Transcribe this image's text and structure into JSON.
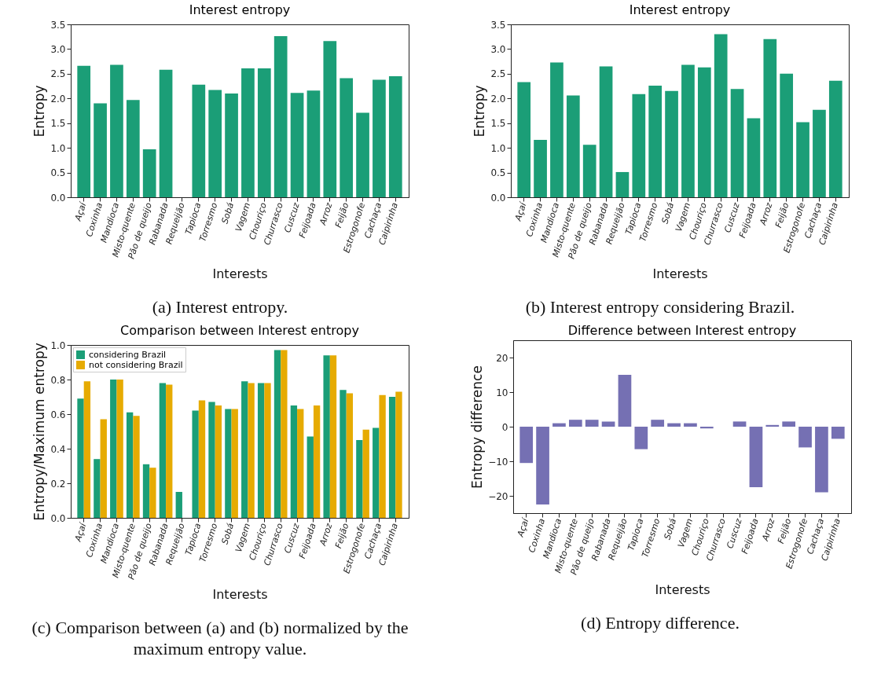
{
  "chart_data": [
    {
      "type": "bar",
      "title": "Interest entropy",
      "xlabel": "Interests",
      "ylabel": "Entropy",
      "categories": [
        "Açaí",
        "Coxinha",
        "Mandioca",
        "Misto-quente",
        "Pão de queijo",
        "Rabanada",
        "Requeijão",
        "Tapioca",
        "Torresmo",
        "Sobá",
        "Vagem",
        "Chouriço",
        "Churrasco",
        "Cuscuz",
        "Feijoada",
        "Arroz",
        "Feijão",
        "Estrogonofe",
        "Cachaça",
        "Caipirinha"
      ],
      "values": [
        2.66,
        1.9,
        2.68,
        1.97,
        0.97,
        2.58,
        0,
        2.28,
        2.17,
        2.1,
        2.61,
        2.61,
        3.26,
        2.11,
        2.16,
        3.16,
        2.41,
        1.71,
        2.38,
        2.45
      ],
      "color": "#1b9e77",
      "ylim": [
        0,
        3.5
      ],
      "yticks": [
        {
          "value": 0,
          "label": "0.0"
        },
        0.5,
        {
          "value": 1,
          "label": "1.0"
        },
        1.5,
        {
          "value": 2,
          "label": "2.0"
        },
        2.5,
        {
          "value": 3,
          "label": "3.0"
        },
        3.5
      ],
      "annotations": [
        "(a) Interest entropy."
      ]
    },
    {
      "type": "bar",
      "title": "Interest entropy",
      "xlabel": "Interests",
      "ylabel": "Entropy",
      "categories": [
        "Açaí",
        "Coxinha",
        "Mandioca",
        "Misto-quente",
        "Pão de queijo",
        "Rabanada",
        "Requeijão",
        "Tapioca",
        "Torresmo",
        "Sobá",
        "Vagem",
        "Chouriço",
        "Churrasco",
        "Cuscuz",
        "Feijoada",
        "Arroz",
        "Feijão",
        "Estrogonofe",
        "Cachaça",
        "Caipirinha"
      ],
      "values": [
        2.33,
        1.16,
        2.73,
        2.06,
        1.06,
        2.65,
        0.51,
        2.09,
        2.26,
        2.15,
        2.68,
        2.63,
        3.3,
        2.19,
        1.6,
        3.2,
        2.5,
        1.52,
        1.77,
        2.36
      ],
      "color": "#1b9e77",
      "ylim": [
        0,
        3.5
      ],
      "yticks": [
        {
          "value": 0,
          "label": "0.0"
        },
        0.5,
        {
          "value": 1,
          "label": "1.0"
        },
        1.5,
        {
          "value": 2,
          "label": "2.0"
        },
        2.5,
        {
          "value": 3,
          "label": "3.0"
        },
        3.5
      ],
      "annotations": [
        "(b) Interest entropy considering Brazil."
      ]
    },
    {
      "type": "bar",
      "title": "Comparison between Interest entropy",
      "xlabel": "Interests",
      "ylabel": "Entropy/Maximum entropy",
      "categories": [
        "Açaí",
        "Coxinha",
        "Mandioca",
        "Misto-quente",
        "Pão de queijo",
        "Rabanada",
        "Requeijão",
        "Tapioca",
        "Torresmo",
        "Sobá",
        "Vagem",
        "Chouriço",
        "Churrasco",
        "Cuscuz",
        "Feijoada",
        "Arroz",
        "Feijão",
        "Estrogonofe",
        "Cachaça",
        "Caipirinha"
      ],
      "series": [
        {
          "name": "considering Brazil",
          "color": "#1b9e77",
          "values": [
            0.69,
            0.34,
            0.8,
            0.61,
            0.31,
            0.78,
            0.15,
            0.62,
            0.67,
            0.63,
            0.79,
            0.78,
            0.97,
            0.65,
            0.47,
            0.94,
            0.74,
            0.45,
            0.52,
            0.7
          ]
        },
        {
          "name": "not considering Brazil",
          "color": "#e6ab02",
          "values": [
            0.79,
            0.57,
            0.8,
            0.59,
            0.29,
            0.77,
            0,
            0.68,
            0.65,
            0.63,
            0.78,
            0.78,
            0.97,
            0.63,
            0.65,
            0.94,
            0.72,
            0.51,
            0.71,
            0.73
          ]
        }
      ],
      "ylim": [
        0,
        1
      ],
      "yticks": [
        {
          "value": 0,
          "label": "0.0"
        },
        0.2,
        0.4,
        0.6,
        0.8,
        {
          "value": 1,
          "label": "1.0"
        }
      ],
      "legend": "top left",
      "annotations": [
        "(c) Comparison between (a) and (b) normalized by the maximum entropy value."
      ]
    },
    {
      "type": "bar",
      "title": "Difference between Interest entropy",
      "xlabel": "Interests",
      "ylabel": "Entropy difference",
      "categories": [
        "Açaí",
        "Coxinha",
        "Mandioca",
        "Misto-quente",
        "Pão de queijo",
        "Rabanada",
        "Requeijão",
        "Tapioca",
        "Torresmo",
        "Sobá",
        "Vagem",
        "Chouriço",
        "Churrasco",
        "Cuscuz",
        "Feijoada",
        "Arroz",
        "Feijão",
        "Estrogonofe",
        "Cachaça",
        "Caipirinha"
      ],
      "values": [
        -10.5,
        -22.5,
        1,
        2,
        2,
        1.5,
        15,
        -6.5,
        2,
        1,
        1,
        -0.5,
        0,
        1.5,
        -17.5,
        0.5,
        1.5,
        -6,
        -19,
        -3.5
      ],
      "color": "#7570b3",
      "ylim": [
        -25,
        25
      ],
      "yticks": [
        {
          "value": -20,
          "label": "−20"
        },
        {
          "value": -10,
          "label": "−10"
        },
        0,
        10,
        20
      ],
      "annotations": [
        "(d) Entropy difference."
      ]
    }
  ]
}
